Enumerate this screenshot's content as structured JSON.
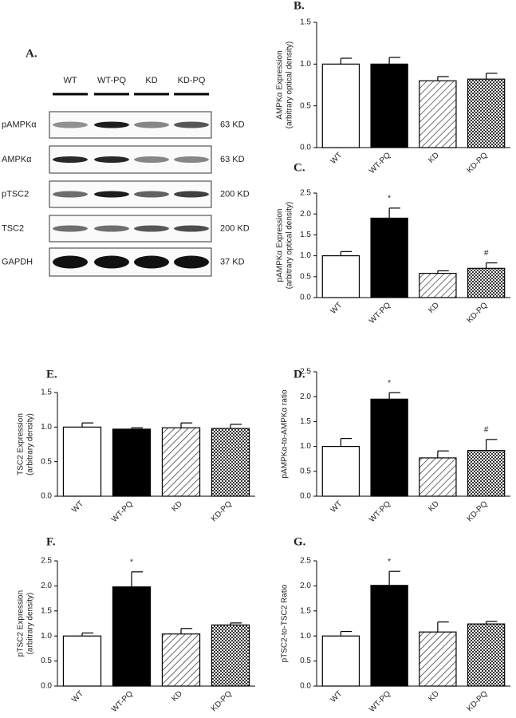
{
  "blot": {
    "panel": "A.",
    "lanes": [
      "WT",
      "WT-PQ",
      "KD",
      "KD-PQ"
    ],
    "rows": [
      {
        "name": "pAMPKα",
        "size": "63 KD"
      },
      {
        "name": "AMPKα",
        "size": "63 KD"
      },
      {
        "name": "pTSC2",
        "size": "200 KD"
      },
      {
        "name": "TSC2",
        "size": "200 KD"
      },
      {
        "name": "GAPDH",
        "size": "37 KD"
      }
    ]
  },
  "chart_data": [
    {
      "type": "bar",
      "panel": "B.",
      "ylabel": [
        "AMPKα Expression",
        "(arbitrary optical density)"
      ],
      "categories": [
        "WT",
        "WT-PQ",
        "KD",
        "KD-PQ"
      ],
      "values": [
        1.0,
        1.0,
        0.8,
        0.82
      ],
      "errors": [
        0.07,
        0.08,
        0.05,
        0.07
      ],
      "fills": [
        "#ffffff",
        "#000000",
        "hatch",
        "dots"
      ],
      "ylim": [
        0,
        1.5
      ],
      "yticks": [
        {
          "value": 0,
          "label": "0.0"
        },
        0.5,
        {
          "value": 1,
          "label": "1.0"
        },
        1.5
      ],
      "annotations": []
    },
    {
      "type": "bar",
      "panel": "C.",
      "ylabel": [
        "pAMPKα Expression",
        "(arbitrary optical density)"
      ],
      "categories": [
        "WT",
        "WT-PQ",
        "KD",
        "KD-PQ"
      ],
      "values": [
        1.0,
        1.9,
        0.58,
        0.7
      ],
      "errors": [
        0.1,
        0.24,
        0.06,
        0.13
      ],
      "fills": [
        "#ffffff",
        "#000000",
        "hatch",
        "dots"
      ],
      "ylim": [
        0,
        2.5
      ],
      "yticks": [
        {
          "value": 0,
          "label": "0.0"
        },
        0.5,
        {
          "value": 1,
          "label": "1.0"
        },
        1.5,
        {
          "value": 2,
          "label": "2.0"
        },
        2.5
      ],
      "annotations": [
        {
          "text": "*",
          "category": "WT-PQ"
        },
        {
          "text": "#",
          "category": "KD-PQ"
        }
      ]
    },
    {
      "type": "bar",
      "panel": "E.",
      "ylabel": [
        "TSC2 Expression",
        "(arbitrary density)"
      ],
      "categories": [
        "WT",
        "WT-PQ",
        "KD",
        "KD-PQ"
      ],
      "values": [
        1.0,
        0.97,
        0.99,
        0.98
      ],
      "errors": [
        0.06,
        0.02,
        0.07,
        0.06
      ],
      "fills": [
        "#ffffff",
        "#000000",
        "hatch",
        "dots"
      ],
      "ylim": [
        0,
        1.5
      ],
      "yticks": [
        {
          "value": 0,
          "label": "0.0"
        },
        0.5,
        {
          "value": 1,
          "label": "1.0"
        },
        1.5
      ],
      "annotations": []
    },
    {
      "type": "bar",
      "panel": "D.",
      "ylabel": [
        "pAMPKα-to-AMPKα ratio"
      ],
      "categories": [
        "WT",
        "WT-PQ",
        "KD",
        "KD-PQ"
      ],
      "values": [
        1.0,
        1.95,
        0.77,
        0.92
      ],
      "errors": [
        0.16,
        0.13,
        0.14,
        0.22
      ],
      "fills": [
        "#ffffff",
        "#000000",
        "hatch",
        "dots"
      ],
      "ylim": [
        0,
        2.5
      ],
      "yticks": [
        {
          "value": 0,
          "label": "0.0"
        },
        0.5,
        {
          "value": 1,
          "label": "1.0"
        },
        1.5,
        {
          "value": 2,
          "label": "2.0"
        },
        2.5
      ],
      "annotations": [
        {
          "text": "*",
          "category": "WT-PQ"
        },
        {
          "text": "#",
          "category": "KD-PQ"
        }
      ]
    },
    {
      "type": "bar",
      "panel": "F.",
      "ylabel": [
        "pTSC2 Expression",
        "(arbitrary density)"
      ],
      "categories": [
        "WT",
        "WT-PQ",
        "KD",
        "KD-PQ"
      ],
      "values": [
        1.0,
        1.98,
        1.04,
        1.22
      ],
      "errors": [
        0.06,
        0.3,
        0.11,
        0.04
      ],
      "fills": [
        "#ffffff",
        "#000000",
        "hatch",
        "dots"
      ],
      "ylim": [
        0,
        2.5
      ],
      "yticks": [
        {
          "value": 0,
          "label": "0.0"
        },
        0.5,
        {
          "value": 1,
          "label": "1.0"
        },
        1.5,
        {
          "value": 2,
          "label": "2.0"
        },
        2.5
      ],
      "annotations": [
        {
          "text": "*",
          "category": "WT-PQ"
        }
      ]
    },
    {
      "type": "bar",
      "panel": "G.",
      "ylabel": [
        "pTSC2-to-TSC2 Ratio"
      ],
      "categories": [
        "WT",
        "WT-PQ",
        "KD",
        "KD-PQ"
      ],
      "values": [
        1.0,
        2.01,
        1.08,
        1.24
      ],
      "errors": [
        0.09,
        0.28,
        0.2,
        0.05
      ],
      "fills": [
        "#ffffff",
        "#000000",
        "hatch",
        "dots"
      ],
      "ylim": [
        0,
        2.5
      ],
      "yticks": [
        {
          "value": 0,
          "label": "0.0"
        },
        0.5,
        {
          "value": 1,
          "label": "1.0"
        },
        1.5,
        {
          "value": 2,
          "label": "2.0"
        },
        2.5
      ],
      "annotations": [
        {
          "text": "*",
          "category": "WT-PQ"
        }
      ]
    }
  ]
}
